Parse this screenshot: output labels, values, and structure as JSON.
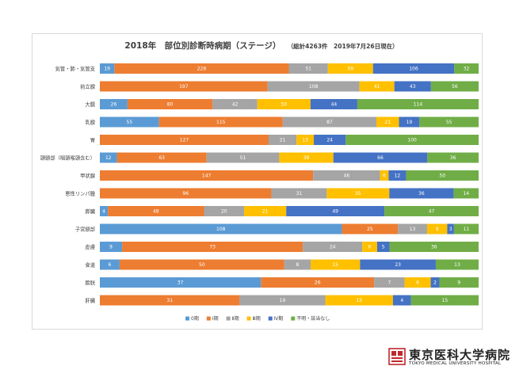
{
  "chart_data": {
    "type": "bar",
    "orientation": "horizontal",
    "stacked": "percent",
    "title": "2018年　部位別診断時病期（ステージ）",
    "subtitle": "（総計4263件　2019年7月26日現在）",
    "categories": [
      "気管・肺・気管支",
      "前立腺",
      "大腸",
      "乳腺",
      "胃",
      "頭頸部（咽頭喉頭含む）",
      "甲状腺",
      "悪性リンパ腫",
      "膵臓",
      "子宮頸部",
      "皮膚",
      "食道",
      "膀胱",
      "肝臓"
    ],
    "series": [
      {
        "name": "0期",
        "color": "#5b9bd5",
        "values": [
          19,
          0,
          26,
          55,
          0,
          12,
          0,
          0,
          4,
          108,
          9,
          6,
          37,
          0
        ]
      },
      {
        "name": "Ⅰ期",
        "color": "#ed7d31",
        "values": [
          228,
          197,
          80,
          115,
          127,
          63,
          147,
          96,
          48,
          25,
          73,
          50,
          26,
          31
        ]
      },
      {
        "name": "Ⅱ期",
        "color": "#a5a5a5",
        "values": [
          51,
          108,
          42,
          87,
          21,
          51,
          46,
          31,
          20,
          13,
          24,
          8,
          7,
          19
        ]
      },
      {
        "name": "Ⅲ期",
        "color": "#ffc000",
        "values": [
          59,
          41,
          50,
          21,
          13,
          38,
          6,
          35,
          21,
          9,
          6,
          15,
          6,
          15
        ]
      },
      {
        "name": "Ⅳ期",
        "color": "#4472c4",
        "values": [
          106,
          43,
          44,
          19,
          24,
          66,
          12,
          36,
          49,
          3,
          5,
          23,
          2,
          4
        ]
      },
      {
        "name": "不明・該当なし",
        "color": "#70ad47",
        "values": [
          32,
          56,
          114,
          55,
          100,
          36,
          50,
          14,
          47,
          11,
          36,
          13,
          9,
          15
        ]
      }
    ],
    "legend_position": "bottom",
    "grid": false
  },
  "logo": {
    "name_jp": "東京医科大学病院",
    "name_en": "TOKYO MEDICAL UNIVERSITY HOSPITAL",
    "mark_icon": "university-seal-icon",
    "mark_color": "#c0282d"
  }
}
